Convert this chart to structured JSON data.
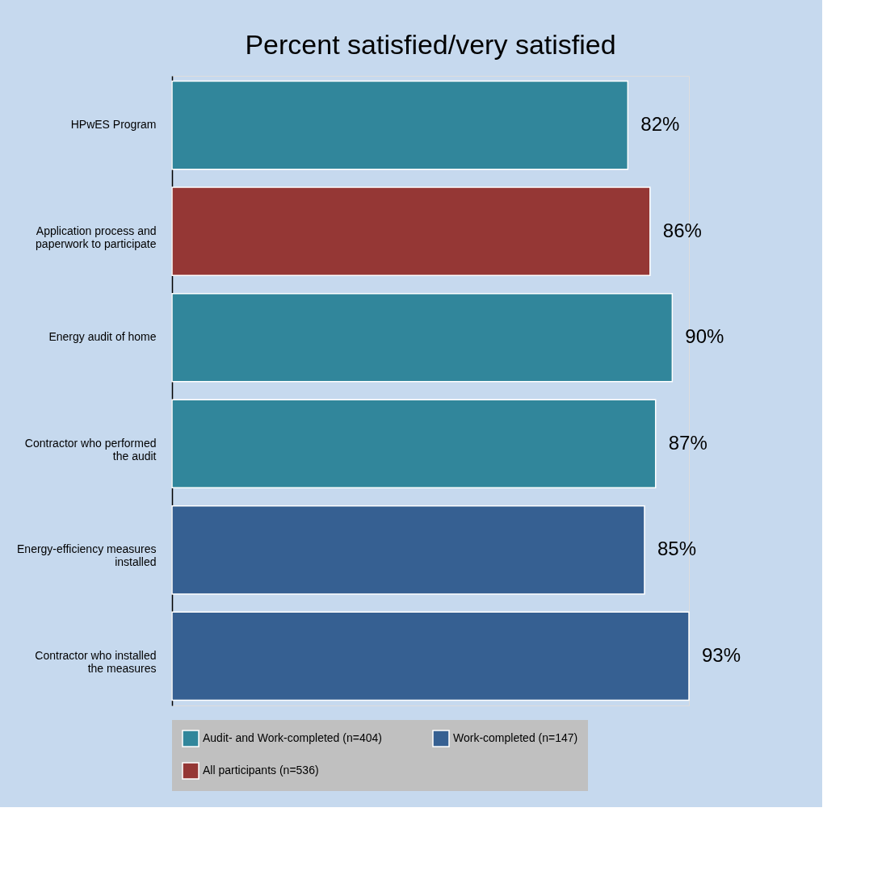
{
  "chart_data": {
    "type": "bar",
    "orientation": "horizontal",
    "title": "Percent satisfied/very satisfied",
    "categories": [
      "HPwES Program",
      "Application process and paperwork to participate",
      "Energy audit of home",
      "Contractor who performed the audit",
      "Energy-efficiency measures installed",
      "Contractor who installed the measures"
    ],
    "series": [
      {
        "name": "Audit- and Work-completed (n=404)",
        "color": "#31869b",
        "values": [
          82,
          null,
          90,
          87,
          null,
          null
        ],
        "value_labels": [
          "82%",
          null,
          "90%",
          "87%",
          null,
          null
        ]
      },
      {
        "name": "Work-completed (n=147)",
        "color": "#366092",
        "values": [
          null,
          null,
          null,
          null,
          85,
          93
        ],
        "value_labels": [
          null,
          null,
          null,
          null,
          "85%",
          "93%"
        ]
      },
      {
        "name": "All participants (n=536)",
        "color": "#953735",
        "values": [
          null,
          86,
          null,
          null,
          null,
          null
        ],
        "value_labels": [
          null,
          "86%",
          null,
          null,
          null,
          null
        ]
      }
    ],
    "legend": "bottom",
    "grid": false,
    "tick_labels": "y"
  }
}
